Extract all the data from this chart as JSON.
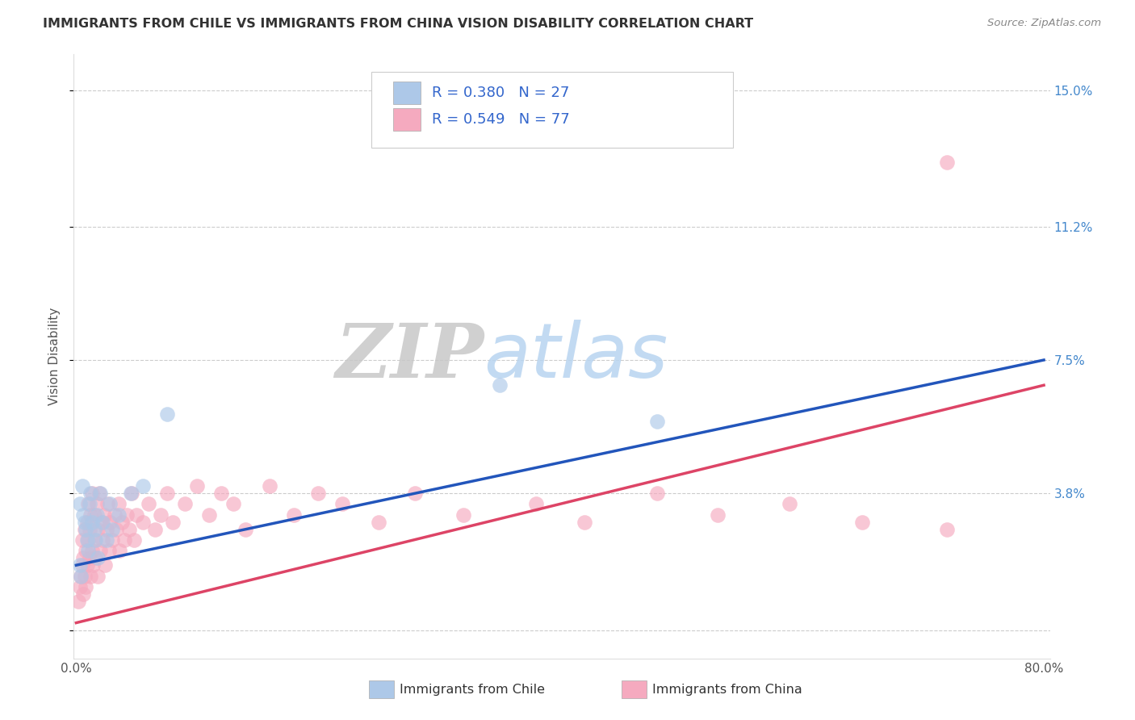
{
  "title": "IMMIGRANTS FROM CHILE VS IMMIGRANTS FROM CHINA VISION DISABILITY CORRELATION CHART",
  "source": "Source: ZipAtlas.com",
  "ylabel": "Vision Disability",
  "x_min": 0.0,
  "x_max": 0.8,
  "y_min": -0.008,
  "y_max": 0.16,
  "y_ticks": [
    0.0,
    0.038,
    0.075,
    0.112,
    0.15
  ],
  "y_tick_labels": [
    "",
    "3.8%",
    "7.5%",
    "11.2%",
    "15.0%"
  ],
  "x_ticks": [
    0.0,
    0.1,
    0.2,
    0.3,
    0.4,
    0.5,
    0.6,
    0.7,
    0.8
  ],
  "x_tick_labels": [
    "0.0%",
    "",
    "",
    "",
    "",
    "",
    "",
    "",
    "80.0%"
  ],
  "chile_color": "#adc8e8",
  "china_color": "#f5aabf",
  "chile_line_color": "#2255bb",
  "china_line_color": "#dd4466",
  "chile_R": 0.38,
  "chile_N": 27,
  "china_R": 0.549,
  "china_N": 77,
  "legend_label_chile": "Immigrants from Chile",
  "legend_label_china": "Immigrants from China",
  "background_color": "#ffffff",
  "grid_color": "#cccccc",
  "chile_scatter_x": [
    0.003,
    0.005,
    0.006,
    0.007,
    0.008,
    0.009,
    0.01,
    0.011,
    0.012,
    0.013,
    0.015,
    0.016,
    0.017,
    0.018,
    0.02,
    0.022,
    0.025,
    0.028,
    0.03,
    0.035,
    0.045,
    0.055,
    0.075,
    0.35,
    0.48,
    0.003,
    0.004
  ],
  "chile_scatter_y": [
    0.035,
    0.04,
    0.032,
    0.03,
    0.028,
    0.025,
    0.022,
    0.035,
    0.038,
    0.03,
    0.028,
    0.025,
    0.032,
    0.02,
    0.038,
    0.03,
    0.025,
    0.035,
    0.028,
    0.032,
    0.038,
    0.04,
    0.06,
    0.068,
    0.058,
    0.018,
    0.015
  ],
  "china_scatter_x": [
    0.002,
    0.003,
    0.004,
    0.005,
    0.005,
    0.006,
    0.006,
    0.007,
    0.007,
    0.008,
    0.008,
    0.009,
    0.009,
    0.01,
    0.01,
    0.011,
    0.011,
    0.012,
    0.012,
    0.013,
    0.013,
    0.014,
    0.015,
    0.015,
    0.016,
    0.017,
    0.018,
    0.018,
    0.019,
    0.02,
    0.021,
    0.022,
    0.023,
    0.024,
    0.025,
    0.026,
    0.027,
    0.028,
    0.03,
    0.032,
    0.033,
    0.035,
    0.036,
    0.038,
    0.04,
    0.042,
    0.044,
    0.046,
    0.048,
    0.05,
    0.055,
    0.06,
    0.065,
    0.07,
    0.075,
    0.08,
    0.09,
    0.1,
    0.11,
    0.12,
    0.13,
    0.14,
    0.16,
    0.18,
    0.2,
    0.22,
    0.25,
    0.28,
    0.32,
    0.38,
    0.42,
    0.48,
    0.53,
    0.59,
    0.65,
    0.72,
    0.72
  ],
  "china_scatter_y": [
    0.008,
    0.012,
    0.015,
    0.018,
    0.025,
    0.01,
    0.02,
    0.015,
    0.028,
    0.012,
    0.022,
    0.018,
    0.03,
    0.025,
    0.035,
    0.02,
    0.028,
    0.015,
    0.032,
    0.022,
    0.038,
    0.018,
    0.025,
    0.032,
    0.02,
    0.035,
    0.015,
    0.028,
    0.038,
    0.022,
    0.03,
    0.025,
    0.032,
    0.018,
    0.028,
    0.035,
    0.022,
    0.03,
    0.025,
    0.032,
    0.028,
    0.035,
    0.022,
    0.03,
    0.025,
    0.032,
    0.028,
    0.038,
    0.025,
    0.032,
    0.03,
    0.035,
    0.028,
    0.032,
    0.038,
    0.03,
    0.035,
    0.04,
    0.032,
    0.038,
    0.035,
    0.028,
    0.04,
    0.032,
    0.038,
    0.035,
    0.03,
    0.038,
    0.032,
    0.035,
    0.03,
    0.038,
    0.032,
    0.035,
    0.03,
    0.028,
    0.13
  ],
  "chile_line_x0": 0.0,
  "chile_line_y0": 0.018,
  "chile_line_x1": 0.8,
  "chile_line_y1": 0.075,
  "china_line_x0": 0.0,
  "china_line_y0": 0.002,
  "china_line_x1": 0.8,
  "china_line_y1": 0.068
}
